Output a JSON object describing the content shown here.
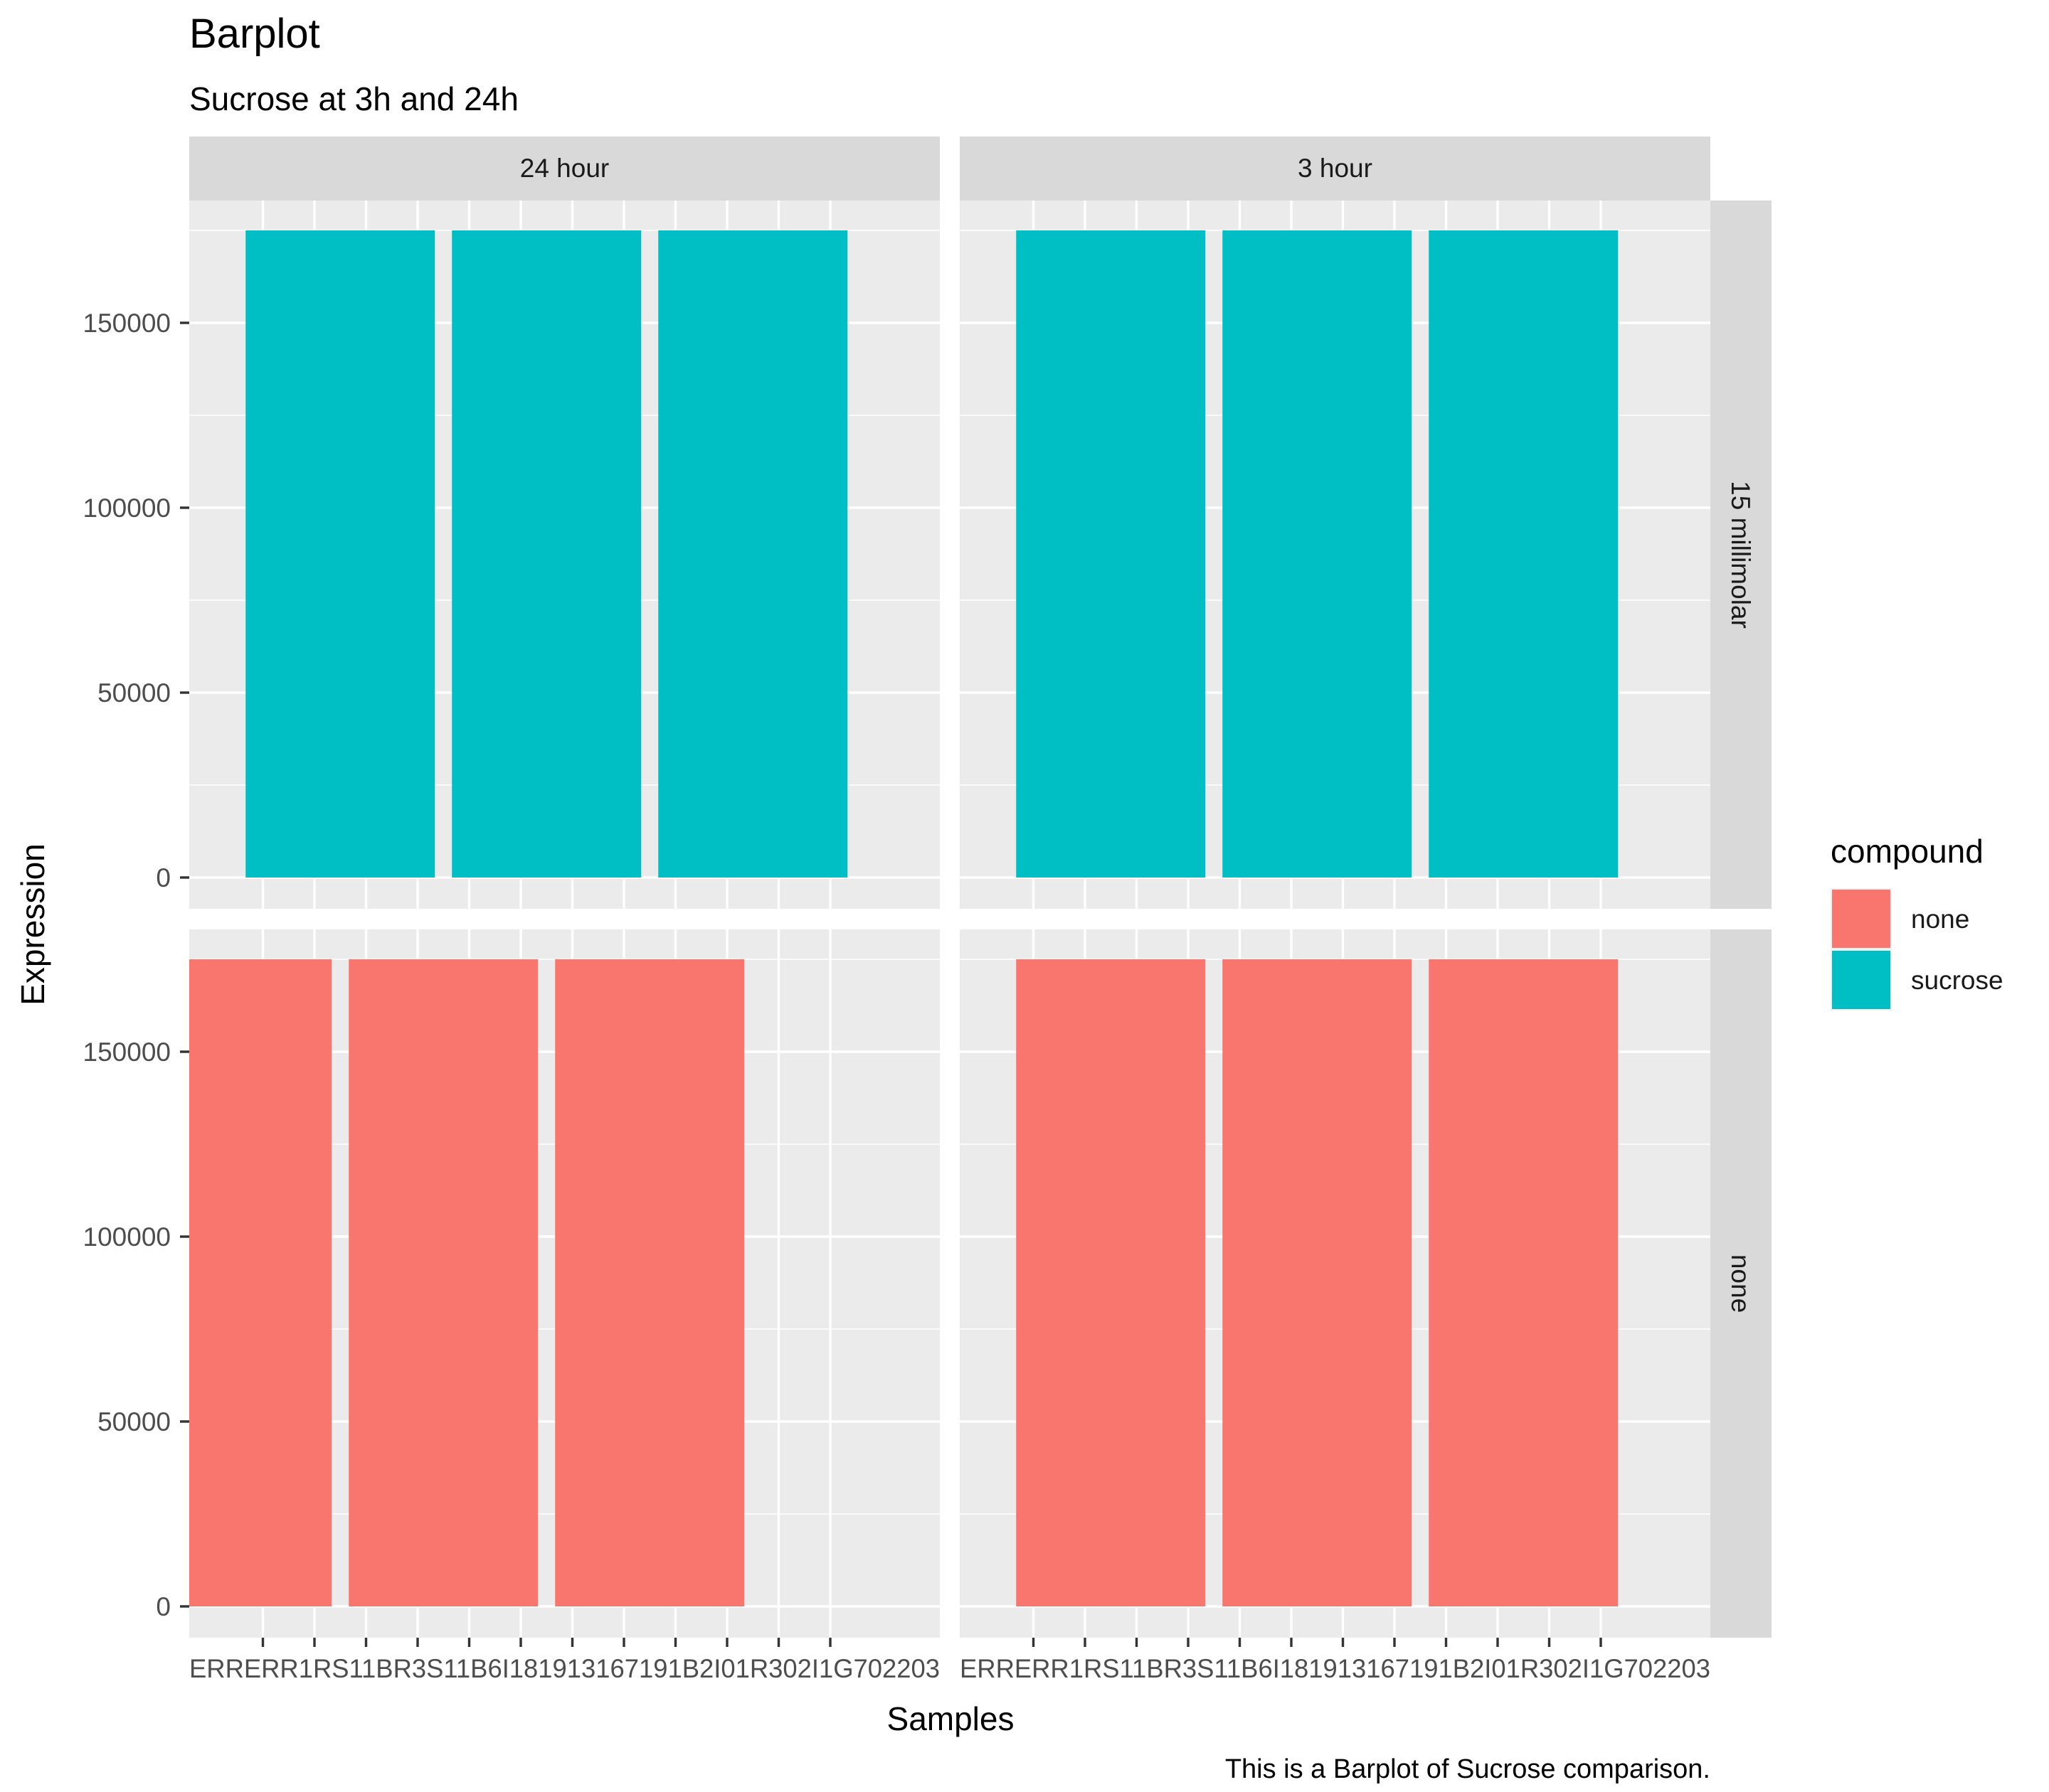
{
  "chart_data": {
    "type": "bar",
    "title": "Barplot",
    "subtitle": "Sucrose at 3h and 24h",
    "caption": "This is a Barplot of Sucrose comparison.",
    "xlabel": "Samples",
    "ylabel": "Expression",
    "ylim": [
      0,
      175000
    ],
    "y_ticks": [
      0,
      50000,
      100000,
      150000
    ],
    "y_tick_labels": [
      "0",
      "50000",
      "100000",
      "150000"
    ],
    "x_tick_count": 12,
    "x_tick_text_overlapped": "ERRERR1RS11BR3S11B6I181913167191B2I01R302I1G702203",
    "facet_cols": [
      "24 hour",
      "3 hour"
    ],
    "facet_rows": [
      "15 millimolar",
      "none"
    ],
    "grid": true,
    "legend": {
      "title": "compound",
      "position": "right",
      "items": [
        {
          "label": "none",
          "color": "#F8766D"
        },
        {
          "label": "sucrose",
          "color": "#00BFC4"
        }
      ]
    },
    "panels": [
      {
        "row": "15 millimolar",
        "col": "24 hour",
        "fill": "#00BFC4",
        "bars": [
          {
            "x": 2.5,
            "value": 175000
          },
          {
            "x": 6.5,
            "value": 175000
          },
          {
            "x": 10.5,
            "value": 175000
          }
        ]
      },
      {
        "row": "15 millimolar",
        "col": "3 hour",
        "fill": "#00BFC4",
        "bars": [
          {
            "x": 2.5,
            "value": 175000
          },
          {
            "x": 6.5,
            "value": 175000
          },
          {
            "x": 10.5,
            "value": 175000
          }
        ]
      },
      {
        "row": "none",
        "col": "24 hour",
        "fill": "#F8766D",
        "bars": [
          {
            "x": 0.5,
            "value": 175000
          },
          {
            "x": 4.5,
            "value": 175000
          },
          {
            "x": 8.5,
            "value": 175000
          }
        ]
      },
      {
        "row": "none",
        "col": "3 hour",
        "fill": "#F8766D",
        "bars": [
          {
            "x": 2.5,
            "value": 175000
          },
          {
            "x": 6.5,
            "value": 175000
          },
          {
            "x": 10.5,
            "value": 175000
          }
        ]
      }
    ]
  }
}
